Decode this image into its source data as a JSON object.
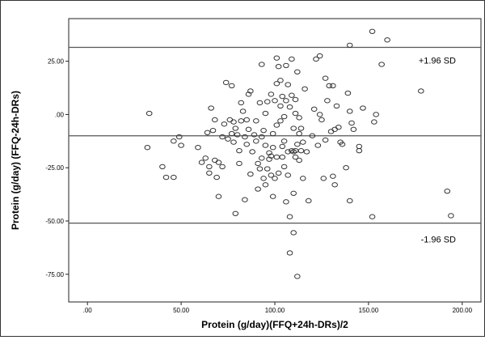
{
  "chart_data": {
    "type": "scatter",
    "xlabel": "Protein (g/day)(FFQ+24h-DRs)/2",
    "ylabel": "Protein (g/day) (FFQ-24h-DRs)",
    "xlim": [
      -10,
      210
    ],
    "ylim": [
      -88,
      45
    ],
    "x_ticks": [
      0,
      50,
      100,
      150,
      200
    ],
    "x_tick_labels": [
      ".00",
      "50.00",
      "100.00",
      "150.00",
      "200.00"
    ],
    "y_ticks": [
      25,
      0,
      -25,
      -50,
      -75
    ],
    "y_tick_labels": [
      "25.00",
      ".00",
      "-25.00",
      "-50.00",
      "-75.00"
    ],
    "grid": false,
    "reference_lines": [
      {
        "label": "+1.96 SD",
        "value": 31.5
      },
      {
        "label": "",
        "value": -10
      },
      {
        "label": "-1.96 SD",
        "value": -51
      }
    ],
    "points": [
      [
        33,
        0.5
      ],
      [
        32,
        -15.5
      ],
      [
        40,
        -24.5
      ],
      [
        42,
        -29.5
      ],
      [
        46,
        -12.5
      ],
      [
        46,
        -29.5
      ],
      [
        49,
        -10.5
      ],
      [
        50,
        -14.5
      ],
      [
        59,
        -15.5
      ],
      [
        61,
        -22.5
      ],
      [
        63,
        -20.5
      ],
      [
        64,
        -8.5
      ],
      [
        65,
        -24.5
      ],
      [
        65,
        -27.5
      ],
      [
        66,
        3
      ],
      [
        67,
        -7.5
      ],
      [
        68,
        -2.5
      ],
      [
        68,
        -21.5
      ],
      [
        69,
        -29.5
      ],
      [
        70,
        -38.5
      ],
      [
        70,
        -22.5
      ],
      [
        72,
        -24.5
      ],
      [
        72,
        -10.5
      ],
      [
        73,
        -4.5
      ],
      [
        74,
        15
      ],
      [
        75,
        -11.5
      ],
      [
        76,
        -2.5
      ],
      [
        77,
        13.5
      ],
      [
        77,
        -9
      ],
      [
        78,
        -13
      ],
      [
        78,
        -3.5
      ],
      [
        79,
        -6.5
      ],
      [
        79,
        -46.5
      ],
      [
        80,
        -9.5
      ],
      [
        81,
        -17
      ],
      [
        81,
        -23
      ],
      [
        82,
        -3
      ],
      [
        82,
        5.5
      ],
      [
        83,
        1.5
      ],
      [
        84,
        -40
      ],
      [
        84,
        -10.5
      ],
      [
        85,
        -14
      ],
      [
        85,
        -2.5
      ],
      [
        86,
        9.5
      ],
      [
        86,
        -7
      ],
      [
        87,
        -28
      ],
      [
        87,
        11
      ],
      [
        88,
        -17.5
      ],
      [
        89,
        -9.5
      ],
      [
        90,
        -12.5
      ],
      [
        90,
        -3
      ],
      [
        91,
        -23
      ],
      [
        91,
        -35
      ],
      [
        92,
        -25.5
      ],
      [
        92,
        5.5
      ],
      [
        93,
        23.5
      ],
      [
        93,
        -10.5
      ],
      [
        93,
        -20.5
      ],
      [
        94,
        -30
      ],
      [
        94,
        -7.5
      ],
      [
        95,
        0.5
      ],
      [
        95,
        -33
      ],
      [
        95,
        -14.5
      ],
      [
        96,
        6
      ],
      [
        96,
        -25.5
      ],
      [
        97,
        -18
      ],
      [
        97,
        -21
      ],
      [
        98,
        -28.5
      ],
      [
        98,
        -19.5
      ],
      [
        98,
        9.5
      ],
      [
        99,
        -15.5
      ],
      [
        99,
        -38.5
      ],
      [
        99,
        -9
      ],
      [
        100,
        6.5
      ],
      [
        100,
        -30
      ],
      [
        101,
        -20
      ],
      [
        101,
        -5
      ],
      [
        101,
        14.5
      ],
      [
        101,
        26.5
      ],
      [
        102,
        22.5
      ],
      [
        102,
        -27.5
      ],
      [
        103,
        4
      ],
      [
        103,
        -3
      ],
      [
        103,
        16
      ],
      [
        104,
        -20
      ],
      [
        104,
        -15
      ],
      [
        104,
        8.5
      ],
      [
        105,
        -12.5
      ],
      [
        105,
        -1
      ],
      [
        105,
        -24.5
      ],
      [
        106,
        6.5
      ],
      [
        106,
        -41
      ],
      [
        106,
        23
      ],
      [
        107,
        -17.5
      ],
      [
        107,
        -28.5
      ],
      [
        107,
        14
      ],
      [
        108,
        -48
      ],
      [
        108,
        -65
      ],
      [
        108,
        3.5
      ],
      [
        109,
        9
      ],
      [
        109,
        -17
      ],
      [
        109,
        26
      ],
      [
        110,
        -55.5
      ],
      [
        110,
        -37
      ],
      [
        110,
        -6.5
      ],
      [
        110,
        -17.5
      ],
      [
        111,
        -20
      ],
      [
        111,
        -17
      ],
      [
        111,
        0.5
      ],
      [
        111,
        7
      ],
      [
        112,
        -76
      ],
      [
        112,
        -14
      ],
      [
        112,
        20
      ],
      [
        113,
        -21.5
      ],
      [
        113,
        -1.5
      ],
      [
        113,
        -9
      ],
      [
        114,
        -17
      ],
      [
        114,
        -6.5
      ],
      [
        115,
        -13
      ],
      [
        115,
        -30
      ],
      [
        116,
        12
      ],
      [
        117,
        -17.5
      ],
      [
        118,
        -40.5
      ],
      [
        120,
        -10
      ],
      [
        121,
        2.5
      ],
      [
        122,
        26
      ],
      [
        123,
        -14.5
      ],
      [
        124,
        0
      ],
      [
        124,
        27.5
      ],
      [
        125,
        -2.5
      ],
      [
        126,
        -30
      ],
      [
        127,
        17
      ],
      [
        127,
        -12
      ],
      [
        128,
        6.5
      ],
      [
        129,
        13.5
      ],
      [
        130,
        -8
      ],
      [
        131,
        -29
      ],
      [
        131,
        13.5
      ],
      [
        132,
        -33
      ],
      [
        132,
        -7
      ],
      [
        133,
        4
      ],
      [
        134,
        -6
      ],
      [
        135,
        -13
      ],
      [
        136,
        -14
      ],
      [
        138,
        -25
      ],
      [
        139,
        10
      ],
      [
        140,
        32.5
      ],
      [
        140,
        1.5
      ],
      [
        140,
        -40.5
      ],
      [
        141,
        -4
      ],
      [
        142,
        -7
      ],
      [
        145,
        -15
      ],
      [
        145,
        -17
      ],
      [
        147,
        3
      ],
      [
        152,
        39
      ],
      [
        152,
        -48
      ],
      [
        153,
        -3.5
      ],
      [
        154,
        0
      ],
      [
        157,
        23.5
      ],
      [
        160,
        35
      ],
      [
        178,
        11
      ],
      [
        192,
        -36
      ],
      [
        194,
        -47.5
      ]
    ]
  }
}
